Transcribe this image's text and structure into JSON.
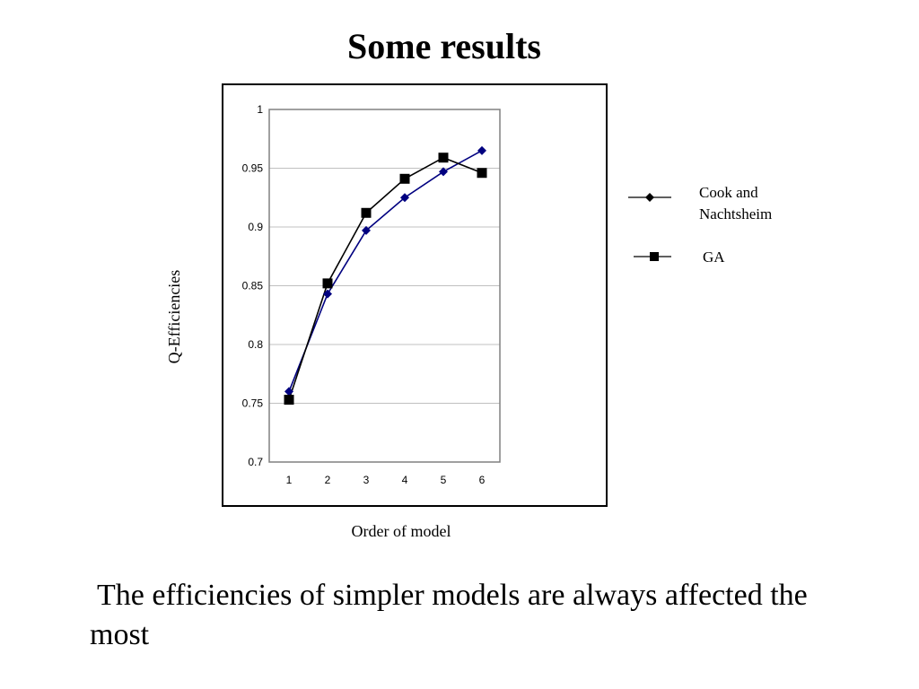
{
  "slide": {
    "title": "Some results",
    "caption": "The efficiencies of simpler models are always affected the most"
  },
  "chart_data": {
    "type": "line",
    "title": "",
    "xlabel": "Order of model",
    "ylabel": "Q-Efficiencies",
    "categories": [
      "1",
      "2",
      "3",
      "4",
      "5",
      "6"
    ],
    "ylim": [
      0.7,
      1
    ],
    "yticks": [
      "0.7",
      "0.75",
      "0.8",
      "0.85",
      "0.9",
      "0.95",
      "1"
    ],
    "grid": "horizontal",
    "legend_position": "right, outside plot frame",
    "series": [
      {
        "name": "Cook and Nachtsheim",
        "marker": "diamond",
        "color": "#000080",
        "line_color": "#000080",
        "values": [
          0.76,
          0.843,
          0.897,
          0.925,
          0.947,
          0.965
        ]
      },
      {
        "name": "GA",
        "marker": "square",
        "color": "#000000",
        "line_color": "#000000",
        "values": [
          0.753,
          0.852,
          0.912,
          0.941,
          0.959,
          0.946
        ]
      }
    ],
    "legend": {
      "line1": "Cook and",
      "line2": "Nachtsheim",
      "ga": "GA"
    }
  }
}
